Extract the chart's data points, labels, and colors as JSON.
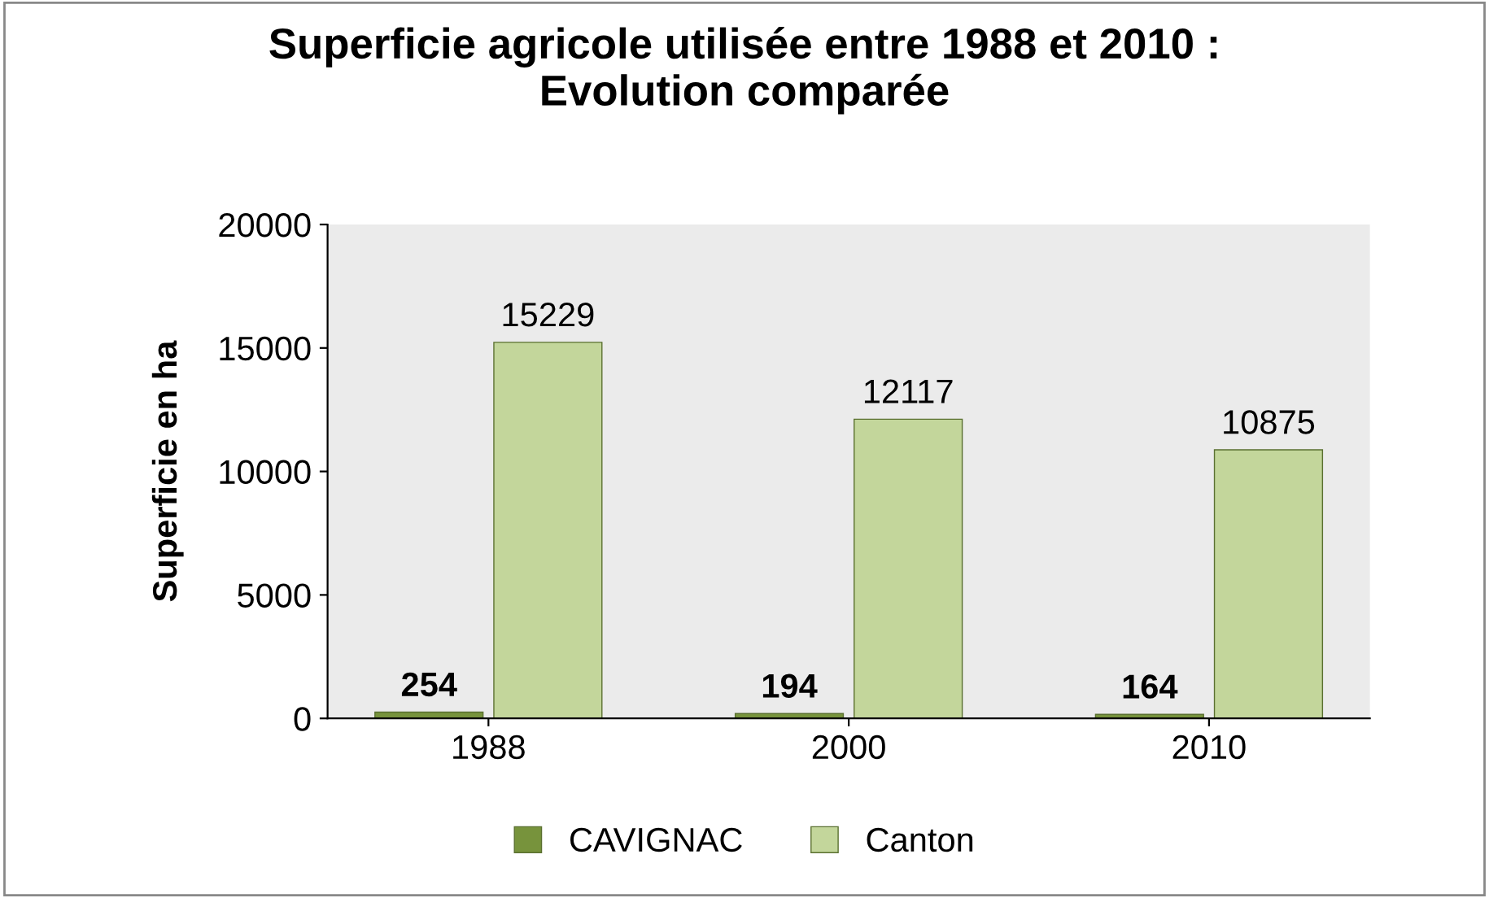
{
  "chart_data": {
    "type": "bar",
    "title": "Superficie agricole utilisée entre 1988 et 2010 :\nEvolution comparée",
    "ylabel": "Superficie en ha",
    "categories": [
      "1988",
      "2000",
      "2010"
    ],
    "series": [
      {
        "name": "CAVIGNAC",
        "color": "#77933c",
        "values": [
          254,
          194,
          164
        ]
      },
      {
        "name": "Canton",
        "color": "#c3d69b",
        "values": [
          15229,
          12117,
          10875
        ]
      }
    ],
    "ylim": [
      0,
      20000
    ],
    "yticks": [
      0,
      5000,
      10000,
      15000,
      20000
    ],
    "data_labels": true,
    "legend": "bottom",
    "grid": false
  }
}
